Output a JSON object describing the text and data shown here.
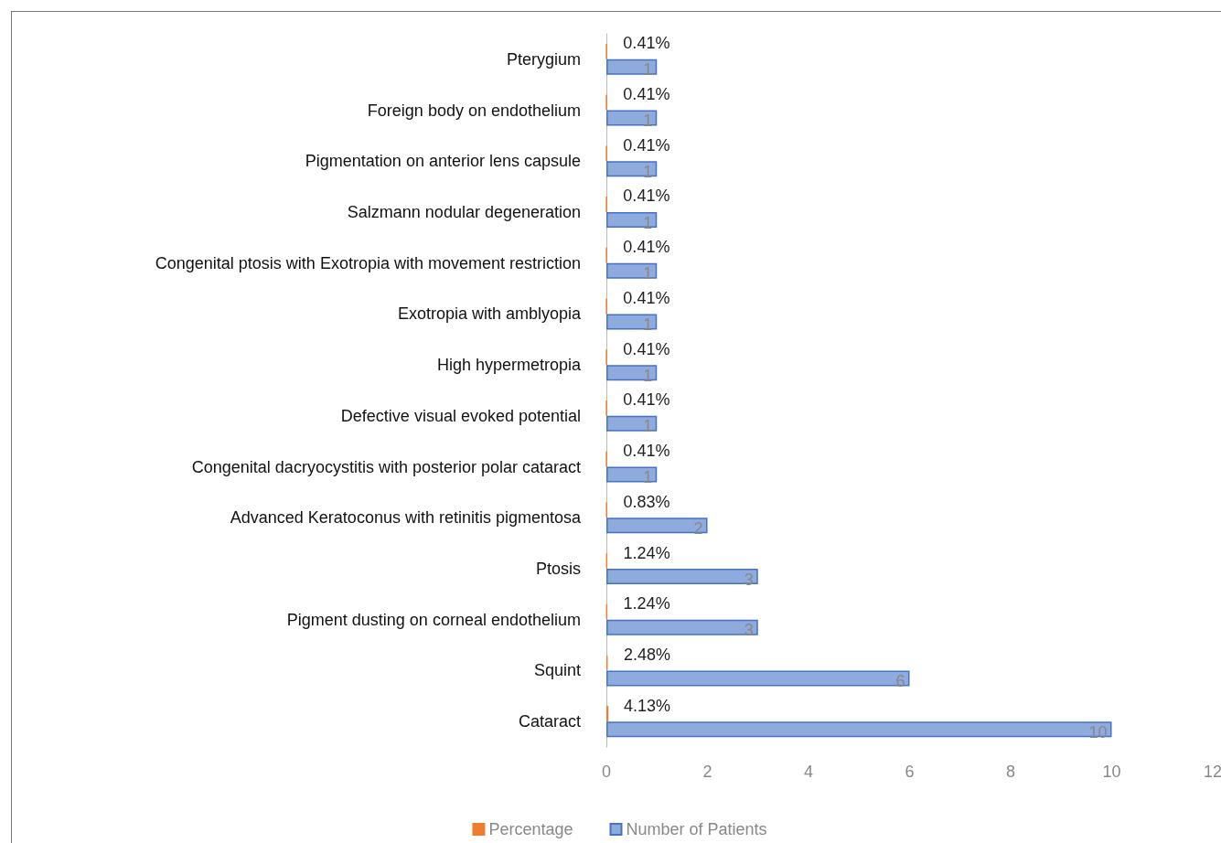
{
  "chart_data": {
    "type": "bar",
    "orientation": "horizontal",
    "categories": [
      "Pterygium",
      "Foreign body on endothelium",
      "Pigmentation on anterior lens capsule",
      "Salzmann nodular degeneration",
      "Congenital ptosis with Exotropia with movement restriction",
      "Exotropia with amblyopia",
      "High hypermetropia",
      "Defective visual evoked potential",
      "Congenital dacryocystitis with posterior polar cataract",
      "Advanced Keratoconus with retinitis pigmentosa",
      "Ptosis",
      "Pigment dusting on corneal endothelium",
      "Squint",
      "Cataract"
    ],
    "series": [
      {
        "name": "Percentage",
        "color": "#ed7d31",
        "values": [
          0.0041,
          0.0041,
          0.0041,
          0.0041,
          0.0041,
          0.0041,
          0.0041,
          0.0041,
          0.0041,
          0.0083,
          0.0124,
          0.0124,
          0.0248,
          0.0413
        ],
        "value_labels": [
          "0.41%",
          "0.41%",
          "0.41%",
          "0.41%",
          "0.41%",
          "0.41%",
          "0.41%",
          "0.41%",
          "0.41%",
          "0.83%",
          "1.24%",
          "1.24%",
          "2.48%",
          "4.13%"
        ]
      },
      {
        "name": "Number of Patients",
        "color": "#8faadc",
        "values": [
          1,
          1,
          1,
          1,
          1,
          1,
          1,
          1,
          1,
          2,
          3,
          3,
          6,
          10
        ],
        "value_labels": [
          "1",
          "1",
          "1",
          "1",
          "1",
          "1",
          "1",
          "1",
          "1",
          "2",
          "3",
          "3",
          "6",
          "10"
        ]
      }
    ],
    "xlim": [
      0,
      12
    ],
    "xticks": [
      0,
      2,
      4,
      6,
      8,
      10,
      12
    ],
    "grid": false,
    "legend": "bottom"
  }
}
